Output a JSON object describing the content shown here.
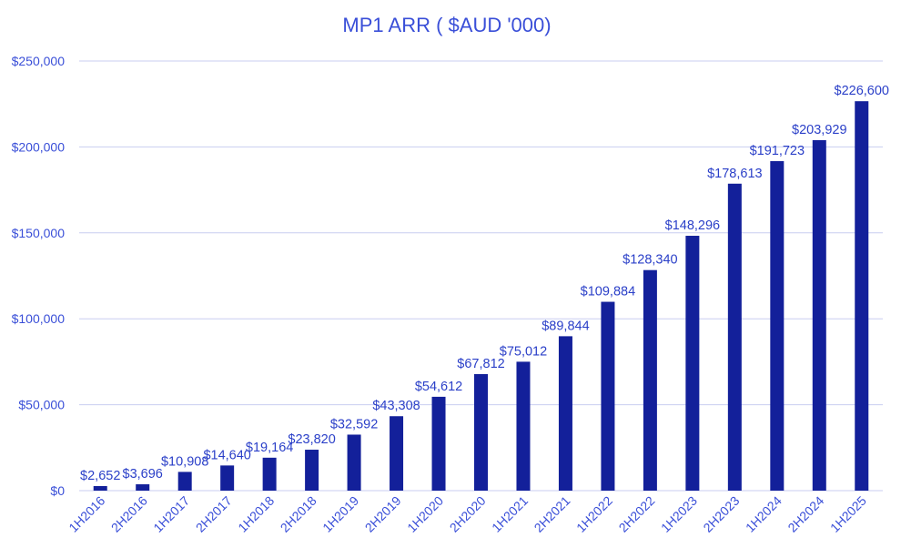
{
  "chart_data": {
    "type": "bar",
    "title": "MP1 ARR ( $AUD '000)",
    "xlabel": "",
    "ylabel": "",
    "ylim": [
      0,
      250000
    ],
    "yticks": [
      0,
      50000,
      100000,
      150000,
      200000,
      250000
    ],
    "ytick_labels": [
      "$0",
      "$50,000",
      "$100,000",
      "$150,000",
      "$200,000",
      "$250,000"
    ],
    "grid": true,
    "legend": "none",
    "bar_color": "#13209a",
    "text_color": "#3a4fd8",
    "grid_color": "#c9cef0",
    "categories": [
      "1H2016",
      "2H2016",
      "1H2017",
      "2H2017",
      "1H2018",
      "2H2018",
      "1H2019",
      "2H2019",
      "1H2020",
      "2H2020",
      "1H2021",
      "2H2021",
      "1H2022",
      "2H2022",
      "1H2023",
      "2H2023",
      "1H2024",
      "2H2024",
      "1H2025"
    ],
    "values": [
      2652,
      3696,
      10908,
      14640,
      19164,
      23820,
      32592,
      43308,
      54612,
      67812,
      75012,
      89844,
      109884,
      128340,
      148296,
      178613,
      191723,
      203929,
      226600
    ],
    "data_labels": [
      "$2,652",
      "$3,696",
      "$10,908",
      "$14,640",
      "$19,164",
      "$23,820",
      "$32,592",
      "$43,308",
      "$54,612",
      "$67,812",
      "$75,012",
      "$89,844",
      "$109,884",
      "$128,340",
      "$148,296",
      "$178,613",
      "$191,723",
      "$203,929",
      "$226,600"
    ]
  }
}
